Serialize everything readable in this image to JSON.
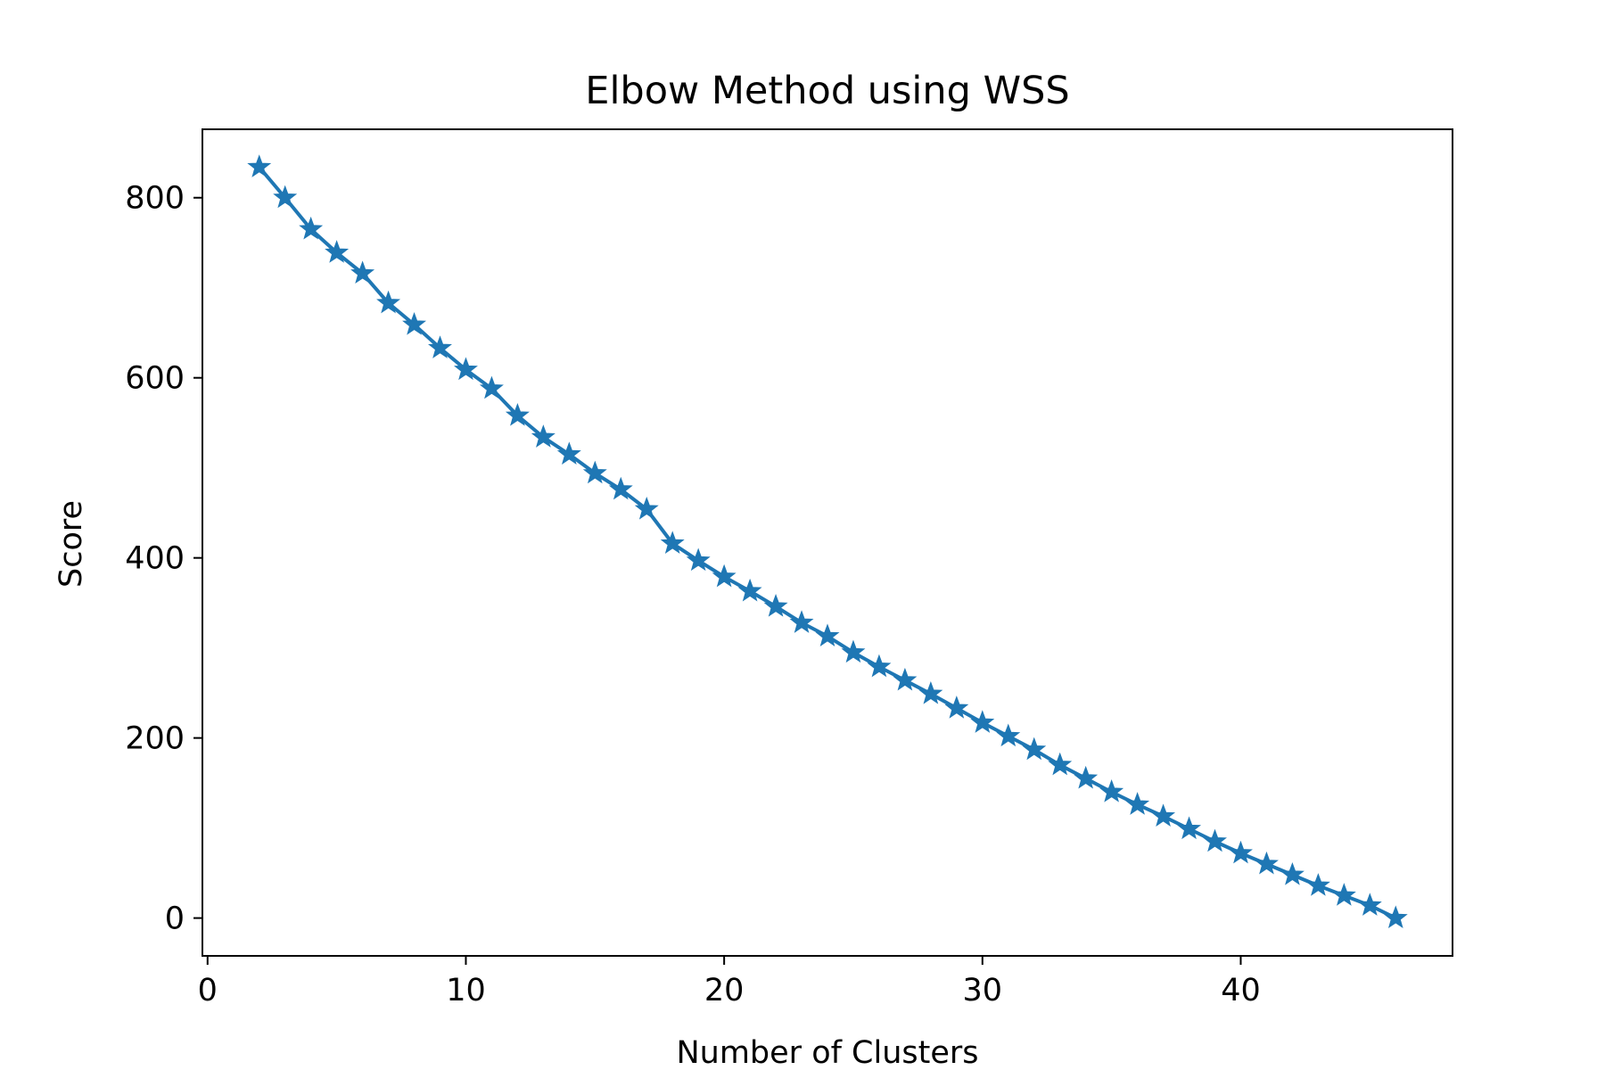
{
  "chart_data": {
    "type": "line",
    "title": "Elbow Method using WSS",
    "xlabel": "Number of Clusters",
    "ylabel": "Score",
    "xlim": [
      -0.2,
      48.2
    ],
    "ylim": [
      -42,
      876
    ],
    "xticks": [
      0,
      10,
      20,
      30,
      40
    ],
    "yticks": [
      0,
      200,
      400,
      600,
      800
    ],
    "grid": false,
    "marker": "star",
    "color": "#1f77b4",
    "series": [
      {
        "x": [
          2,
          3,
          4,
          5,
          6,
          7,
          8,
          9,
          10,
          11,
          12,
          13,
          14,
          15,
          16,
          17,
          18,
          19,
          20,
          21,
          22,
          23,
          24,
          25,
          26,
          27,
          28,
          29,
          30,
          31,
          32,
          33,
          34,
          35,
          36,
          37,
          38,
          39,
          40,
          41,
          42,
          43,
          44,
          45,
          46
        ],
        "values": [
          834,
          800,
          765,
          739,
          716,
          683,
          659,
          633,
          609,
          588,
          558,
          534,
          515,
          494,
          476,
          454,
          416,
          397,
          379,
          363,
          346,
          328,
          313,
          295,
          279,
          264,
          249,
          233,
          217,
          202,
          187,
          170,
          155,
          140,
          126,
          113,
          99,
          85,
          72,
          60,
          48,
          36,
          25,
          14,
          0
        ]
      }
    ]
  }
}
